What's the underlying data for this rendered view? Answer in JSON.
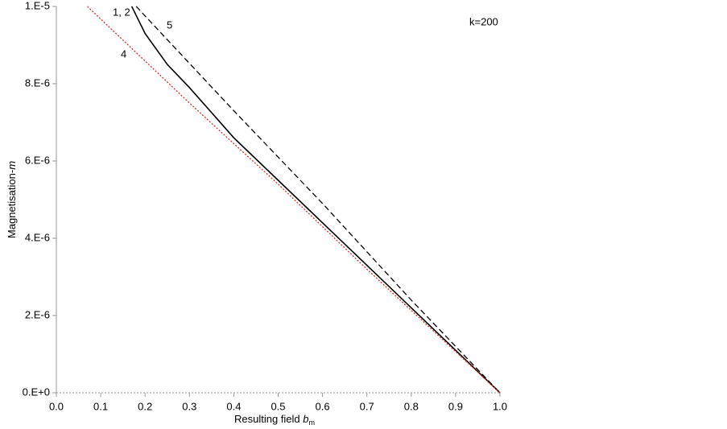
{
  "chart_data": {
    "type": "line",
    "xlabel": {
      "text": "Resulting field ",
      "var": "b",
      "sub": "m"
    },
    "ylabel": {
      "text": "Magnetisation-",
      "var": "m"
    },
    "annotations": [
      "k=200"
    ],
    "xlim": [
      0,
      1.0
    ],
    "xticks": [
      {
        "value": 0,
        "label": "0.0"
      },
      0.1,
      0.2,
      0.3,
      0.4,
      0.5,
      0.6,
      0.7,
      0.8,
      0.9,
      {
        "value": 1.0,
        "label": "1.0"
      }
    ],
    "ylim": [
      0,
      1e-05
    ],
    "yticks": [
      {
        "value": 0,
        "label": "0.E+0"
      },
      {
        "value": 2e-06,
        "label": "2.E-6"
      },
      {
        "value": 4e-06,
        "label": "4.E-6"
      },
      {
        "value": 6e-06,
        "label": "6.E-6"
      },
      {
        "value": 8e-06,
        "label": "8.E-6"
      },
      {
        "value": 1e-05,
        "label": "1.E-5"
      }
    ],
    "series": [
      {
        "name": "1, 2",
        "color": "#000000",
        "style": "solid",
        "x": [
          0.17,
          0.2,
          0.25,
          0.3,
          0.4,
          0.5,
          0.6,
          0.7,
          0.8,
          0.9,
          1.0
        ],
        "values": [
          1e-05,
          9.3e-06,
          8.5e-06,
          7.9e-06,
          6.6e-06,
          5.5e-06,
          4.4e-06,
          3.3e-06,
          2.2e-06,
          1.1e-06,
          0
        ]
      },
      {
        "name": "5",
        "color": "#000000",
        "style": "dashed",
        "x": [
          0.18,
          0.4,
          0.6,
          0.8,
          1.0
        ],
        "values": [
          1e-05,
          7.3e-06,
          4.9e-06,
          2.4e-06,
          0
        ]
      },
      {
        "name": "4",
        "color": "#e03020",
        "style": "dotted",
        "x": [
          0.07,
          0.3,
          0.5,
          0.7,
          1.0
        ],
        "values": [
          1e-05,
          7.5e-06,
          5.4e-06,
          3.2e-06,
          0
        ]
      }
    ]
  }
}
